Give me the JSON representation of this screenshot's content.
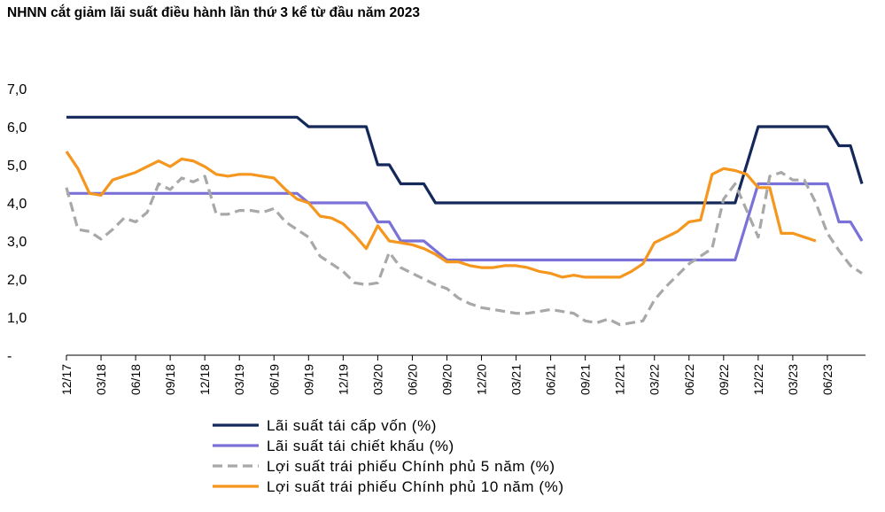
{
  "title": "NHNN cắt giảm lãi suất điều hành lần thứ 3 kể từ đầu năm 2023",
  "chart_data": {
    "type": "line",
    "ylim": [
      0,
      7
    ],
    "y_ticks": [
      "-",
      "1,0",
      "2,0",
      "3,0",
      "4,0",
      "5,0",
      "6,0",
      "7,0"
    ],
    "x_tick_labels": [
      "12/17",
      "03/18",
      "06/18",
      "09/18",
      "12/18",
      "03/19",
      "06/19",
      "09/19",
      "12/19",
      "03/20",
      "06/20",
      "09/20",
      "12/20",
      "03/21",
      "06/21",
      "09/21",
      "12/21",
      "03/22",
      "06/22",
      "09/22",
      "12/22",
      "03/23",
      "06/23"
    ],
    "legend_position": "bottom",
    "grid": false,
    "series": [
      {
        "name": "Lãi suất tái cấp vốn (%)",
        "color": "#14285a",
        "style": "solid",
        "points": [
          [
            0,
            6.25
          ],
          [
            20,
            6.25
          ],
          [
            21,
            6.0
          ],
          [
            26,
            6.0
          ],
          [
            27,
            5.0
          ],
          [
            28,
            5.0
          ],
          [
            29,
            4.5
          ],
          [
            31,
            4.5
          ],
          [
            32,
            4.0
          ],
          [
            57,
            4.0
          ],
          [
            58,
            4.0
          ],
          [
            59,
            5.0
          ],
          [
            60,
            6.0
          ],
          [
            66,
            6.0
          ],
          [
            67,
            5.5
          ],
          [
            68,
            5.5
          ],
          [
            69,
            4.5
          ]
        ]
      },
      {
        "name": "Lãi suất tái chiết khấu (%)",
        "color": "#7b72d8",
        "style": "solid",
        "points": [
          [
            0,
            4.25
          ],
          [
            20,
            4.25
          ],
          [
            21,
            4.0
          ],
          [
            26,
            4.0
          ],
          [
            27,
            3.5
          ],
          [
            28,
            3.5
          ],
          [
            29,
            3.0
          ],
          [
            31,
            3.0
          ],
          [
            33,
            2.5
          ],
          [
            58,
            2.5
          ],
          [
            59,
            3.5
          ],
          [
            60,
            4.5
          ],
          [
            66,
            4.5
          ],
          [
            67,
            3.5
          ],
          [
            68,
            3.5
          ],
          [
            69,
            3.0
          ]
        ]
      },
      {
        "name": "Lợi suất trái phiếu Chính phủ 5 năm (%)",
        "color": "#a8a8a8",
        "style": "dashed",
        "points": [
          [
            0,
            4.4
          ],
          [
            1,
            3.3
          ],
          [
            2,
            3.25
          ],
          [
            3,
            3.05
          ],
          [
            4,
            3.3
          ],
          [
            5,
            3.6
          ],
          [
            6,
            3.5
          ],
          [
            7,
            3.75
          ],
          [
            8,
            4.5
          ],
          [
            9,
            4.35
          ],
          [
            10,
            4.65
          ],
          [
            11,
            4.55
          ],
          [
            12,
            4.7
          ],
          [
            13,
            3.7
          ],
          [
            14,
            3.7
          ],
          [
            15,
            3.8
          ],
          [
            16,
            3.8
          ],
          [
            17,
            3.75
          ],
          [
            18,
            3.85
          ],
          [
            19,
            3.5
          ],
          [
            20,
            3.3
          ],
          [
            21,
            3.1
          ],
          [
            22,
            2.6
          ],
          [
            23,
            2.4
          ],
          [
            24,
            2.2
          ],
          [
            25,
            1.9
          ],
          [
            26,
            1.85
          ],
          [
            27,
            1.9
          ],
          [
            28,
            2.7
          ],
          [
            29,
            2.3
          ],
          [
            30,
            2.15
          ],
          [
            31,
            2.0
          ],
          [
            32,
            1.85
          ],
          [
            33,
            1.75
          ],
          [
            34,
            1.5
          ],
          [
            35,
            1.35
          ],
          [
            36,
            1.25
          ],
          [
            37,
            1.2
          ],
          [
            38,
            1.15
          ],
          [
            39,
            1.1
          ],
          [
            40,
            1.1
          ],
          [
            41,
            1.15
          ],
          [
            42,
            1.2
          ],
          [
            43,
            1.15
          ],
          [
            44,
            1.1
          ],
          [
            45,
            0.9
          ],
          [
            46,
            0.85
          ],
          [
            47,
            0.95
          ],
          [
            48,
            0.8
          ],
          [
            49,
            0.85
          ],
          [
            50,
            0.9
          ],
          [
            51,
            1.45
          ],
          [
            52,
            1.8
          ],
          [
            53,
            2.1
          ],
          [
            54,
            2.4
          ],
          [
            55,
            2.6
          ],
          [
            56,
            2.8
          ],
          [
            57,
            4.1
          ],
          [
            58,
            4.5
          ],
          [
            59,
            3.8
          ],
          [
            60,
            3.1
          ],
          [
            61,
            4.7
          ],
          [
            62,
            4.8
          ],
          [
            63,
            4.6
          ],
          [
            64,
            4.6
          ],
          [
            65,
            4.0
          ],
          [
            66,
            3.2
          ],
          [
            67,
            2.75
          ],
          [
            68,
            2.35
          ],
          [
            69,
            2.15
          ]
        ]
      },
      {
        "name": "Lợi suất trái phiếu Chính phủ 10 năm (%)",
        "color": "#f5961e",
        "style": "solid",
        "points": [
          [
            0,
            5.35
          ],
          [
            1,
            4.9
          ],
          [
            2,
            4.25
          ],
          [
            3,
            4.2
          ],
          [
            4,
            4.6
          ],
          [
            5,
            4.7
          ],
          [
            6,
            4.8
          ],
          [
            7,
            4.95
          ],
          [
            8,
            5.1
          ],
          [
            9,
            4.95
          ],
          [
            10,
            5.15
          ],
          [
            11,
            5.1
          ],
          [
            12,
            4.95
          ],
          [
            13,
            4.75
          ],
          [
            14,
            4.7
          ],
          [
            15,
            4.75
          ],
          [
            16,
            4.75
          ],
          [
            17,
            4.7
          ],
          [
            18,
            4.65
          ],
          [
            19,
            4.35
          ],
          [
            20,
            4.1
          ],
          [
            21,
            4.0
          ],
          [
            22,
            3.65
          ],
          [
            23,
            3.6
          ],
          [
            24,
            3.45
          ],
          [
            25,
            3.15
          ],
          [
            26,
            2.8
          ],
          [
            27,
            3.4
          ],
          [
            28,
            3.0
          ],
          [
            29,
            2.95
          ],
          [
            30,
            2.9
          ],
          [
            31,
            2.8
          ],
          [
            32,
            2.65
          ],
          [
            33,
            2.45
          ],
          [
            34,
            2.45
          ],
          [
            35,
            2.35
          ],
          [
            36,
            2.3
          ],
          [
            37,
            2.3
          ],
          [
            38,
            2.35
          ],
          [
            39,
            2.35
          ],
          [
            40,
            2.3
          ],
          [
            41,
            2.2
          ],
          [
            42,
            2.15
          ],
          [
            43,
            2.05
          ],
          [
            44,
            2.1
          ],
          [
            45,
            2.05
          ],
          [
            46,
            2.05
          ],
          [
            47,
            2.05
          ],
          [
            48,
            2.05
          ],
          [
            49,
            2.2
          ],
          [
            50,
            2.4
          ],
          [
            51,
            2.95
          ],
          [
            52,
            3.1
          ],
          [
            53,
            3.25
          ],
          [
            54,
            3.5
          ],
          [
            55,
            3.55
          ],
          [
            56,
            4.75
          ],
          [
            57,
            4.9
          ],
          [
            58,
            4.85
          ],
          [
            59,
            4.75
          ],
          [
            60,
            4.4
          ],
          [
            61,
            4.4
          ],
          [
            62,
            3.2
          ],
          [
            63,
            3.2
          ],
          [
            64,
            3.1
          ],
          [
            65,
            3.0
          ]
        ]
      }
    ]
  }
}
